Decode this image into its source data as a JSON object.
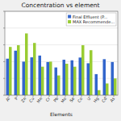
{
  "chart_data": {
    "type": "bar",
    "title": "Concentration vs element",
    "xlabel": "Elements",
    "categories": [
      "Al",
      "P",
      "Zn",
      "Cu",
      "Mn",
      "Cr",
      "Pb",
      "Mo",
      "Se",
      "Co",
      "U",
      "Hg",
      "Cd",
      "As"
    ],
    "series": [
      {
        "name": "Final Effluent (P...",
        "color": "#3366CC",
        "values": [
          150,
          450,
          100,
          180,
          230,
          95,
          45,
          130,
          120,
          175,
          80,
          18,
          140,
          95
        ]
      },
      {
        "name": "MAX Recommende...",
        "color": "#99CC33",
        "values": [
          750,
          950,
          4800,
          1300,
          50,
          100,
          15,
          75,
          50,
          950,
          480,
          2,
          5,
          10
        ]
      }
    ],
    "log": "y",
    "ylim": [
      1,
      100000
    ],
    "yticks": [
      1,
      10,
      100,
      1000,
      10000,
      100000
    ],
    "grid": true,
    "legend": "upper right",
    "tick_labels": "x"
  }
}
